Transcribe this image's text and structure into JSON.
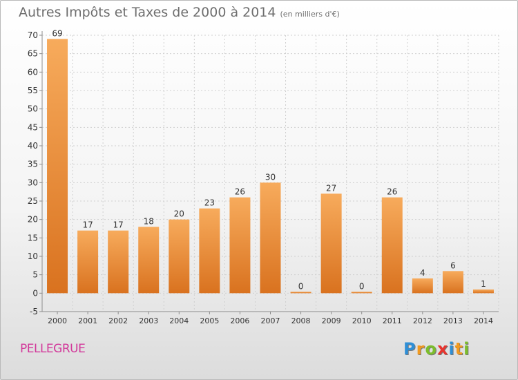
{
  "header": {
    "title": "Autres Impôts et Taxes de 2000 à 2014",
    "subtitle": "(en milliers d'€)"
  },
  "footer": {
    "place": "PELLEGRUE",
    "logo_letters": [
      "P",
      "r",
      "o",
      "x",
      "i",
      "t",
      "i"
    ],
    "logo_colors": [
      "#2f8fd6",
      "#f29a1f",
      "#7cbd2c",
      "#e8342e",
      "#2f8fd6",
      "#f29a1f",
      "#7cbd2c"
    ]
  },
  "colors": {
    "bar_light": "#f7ab5c",
    "bar_dark": "#d9721f",
    "axis": "#8c8c8c",
    "grid": "#cfcfcf",
    "text": "#333333"
  },
  "chart_data": {
    "type": "bar",
    "title": "Autres Impôts et Taxes de 2000 à 2014",
    "subtitle": "(en milliers d'€)",
    "categories": [
      "2000",
      "2001",
      "2002",
      "2003",
      "2004",
      "2005",
      "2006",
      "2007",
      "2008",
      "2009",
      "2010",
      "2011",
      "2012",
      "2013",
      "2014"
    ],
    "values": [
      69,
      17,
      17,
      18,
      20,
      23,
      26,
      30,
      0,
      27,
      0,
      26,
      4,
      6,
      1
    ],
    "labels": [
      "69",
      "17",
      "17",
      "18",
      "20",
      "23",
      "26",
      "30",
      "0",
      "27",
      "0",
      "26",
      "4",
      "6",
      "1"
    ],
    "ylim": [
      -5,
      70
    ],
    "yticks": [
      -5,
      0,
      5,
      10,
      15,
      20,
      25,
      30,
      35,
      40,
      45,
      50,
      55,
      60,
      65,
      70
    ],
    "grid": true,
    "legend": "none"
  }
}
